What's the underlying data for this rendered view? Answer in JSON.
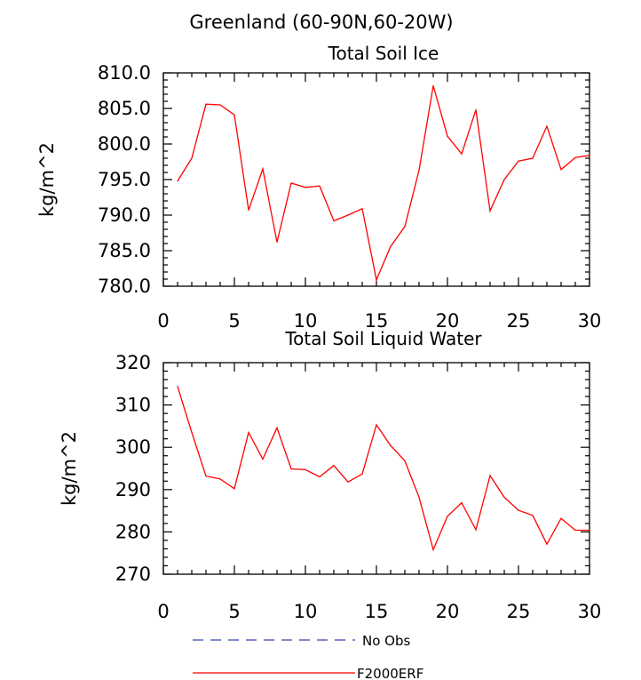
{
  "figure": {
    "title": "Greenland (60-90N,60-20W)"
  },
  "colors": {
    "model": "#ff0000",
    "obs": "#3344aa",
    "axis": "#000000",
    "background": "#ffffff"
  },
  "legend": {
    "items": [
      {
        "label": "No Obs",
        "style": "dashed",
        "color": "#3344aa"
      },
      {
        "label": "F2000ERF",
        "style": "solid",
        "color": "#ff0000"
      }
    ]
  },
  "chart_data": [
    {
      "type": "line",
      "title": "Total Soil Ice",
      "xlabel": "",
      "ylabel": "kg/m^2",
      "xlim": [
        0,
        30
      ],
      "ylim": [
        780,
        810
      ],
      "xticks": [
        0,
        5,
        10,
        15,
        20,
        25,
        30
      ],
      "yticks": [
        780,
        785,
        790,
        795,
        800,
        805,
        810
      ],
      "ytick_decimals": 1,
      "grid": false,
      "x": [
        1,
        2,
        3,
        4,
        5,
        6,
        7,
        8,
        9,
        10,
        11,
        12,
        13,
        14,
        15,
        16,
        17,
        18,
        19,
        20,
        21,
        22,
        23,
        24,
        25,
        26,
        27,
        28,
        29,
        30
      ],
      "series": [
        {
          "name": "F2000ERF",
          "values": [
            794.8,
            798.0,
            805.6,
            805.5,
            804.1,
            790.7,
            796.5,
            786.2,
            794.5,
            793.9,
            794.1,
            789.2,
            790.0,
            790.9,
            780.9,
            785.6,
            788.4,
            796.3,
            808.2,
            801.1,
            798.6,
            804.8,
            790.6,
            795.0,
            797.6,
            798.0,
            802.5,
            796.4,
            798.1,
            798.4
          ]
        }
      ]
    },
    {
      "type": "line",
      "title": "Total Soil Liquid Water",
      "xlabel": "",
      "ylabel": "kg/m^2",
      "xlim": [
        0,
        30
      ],
      "ylim": [
        270,
        320
      ],
      "xticks": [
        0,
        5,
        10,
        15,
        20,
        25,
        30
      ],
      "yticks": [
        270,
        280,
        290,
        300,
        310,
        320
      ],
      "ytick_decimals": 0,
      "grid": false,
      "x": [
        1,
        2,
        3,
        4,
        5,
        6,
        7,
        8,
        9,
        10,
        11,
        12,
        13,
        14,
        15,
        16,
        17,
        18,
        19,
        20,
        21,
        22,
        23,
        24,
        25,
        26,
        27,
        28,
        29,
        30
      ],
      "series": [
        {
          "name": "F2000ERF",
          "values": [
            314.4,
            303.5,
            293.2,
            292.5,
            290.2,
            303.5,
            297.2,
            304.6,
            294.9,
            294.7,
            293.0,
            295.7,
            291.8,
            293.7,
            305.3,
            300.4,
            296.8,
            288.2,
            275.8,
            283.7,
            286.9,
            280.5,
            293.3,
            288.2,
            285.1,
            283.9,
            277.1,
            283.2,
            280.4,
            280.4
          ]
        }
      ]
    }
  ]
}
